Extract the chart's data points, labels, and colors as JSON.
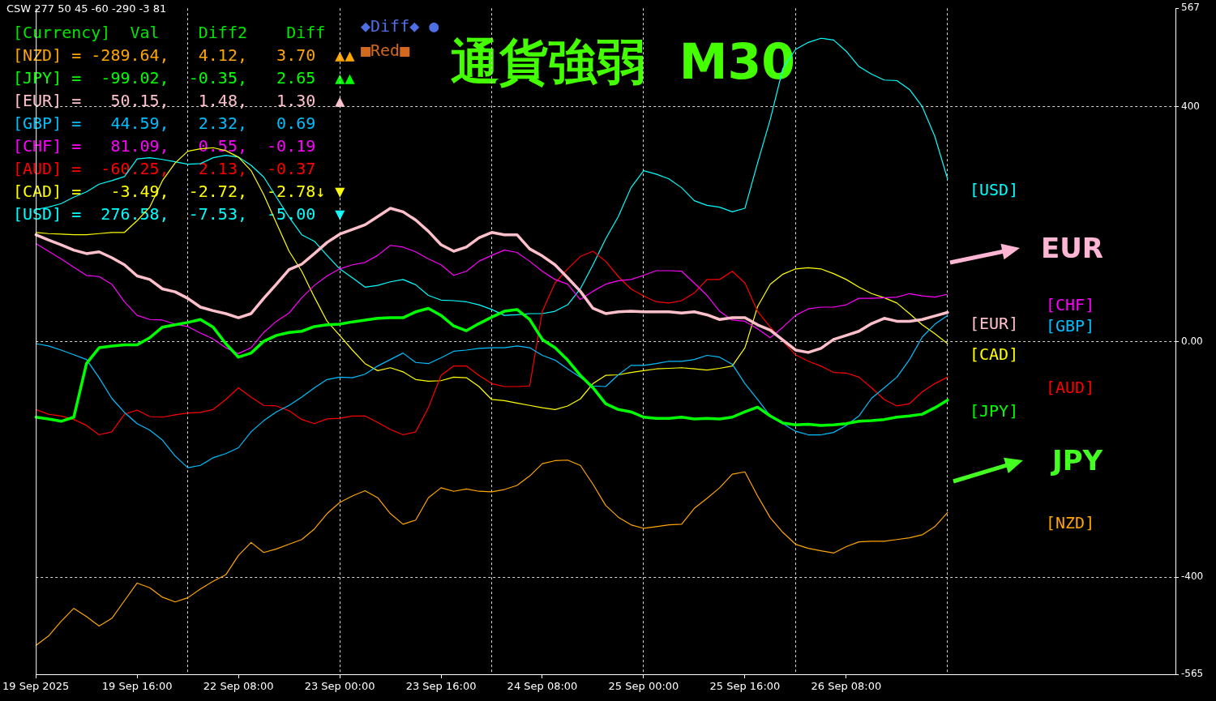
{
  "chart_data": {
    "type": "line",
    "title": "CSW 277 50 45 -60 -290 -3 81",
    "subtitle": "通貨強弱  M30",
    "categories": [
      "19 Sep 2025",
      null,
      null,
      null,
      null,
      null,
      null,
      null,
      "19 Sep 16:00",
      null,
      null,
      null,
      null,
      null,
      null,
      null,
      "22 Sep 08:00",
      null,
      null,
      null,
      null,
      null,
      null,
      null,
      "23 Sep 00:00",
      null,
      null,
      null,
      null,
      null,
      null,
      null,
      "23 Sep 16:00",
      null,
      null,
      null,
      null,
      null,
      null,
      null,
      "24 Sep 08:00",
      null,
      null,
      null,
      null,
      null,
      null,
      null,
      "25 Sep 00:00",
      null,
      null,
      null,
      null,
      null,
      null,
      null,
      "25 Sep 16:00",
      null,
      null,
      null,
      null,
      null,
      null,
      null,
      "26 Sep 08:00",
      null,
      null,
      null,
      null,
      null,
      null,
      null,
      null,
      null,
      null,
      null,
      null,
      null,
      null,
      null,
      null,
      null,
      null,
      null,
      null,
      null,
      null,
      null,
      null,
      null,
      null
    ],
    "series": [
      {
        "name": "[NZD]",
        "color": "#ffa500",
        "values": [
          -516,
          -500,
          -475,
          -453,
          -467,
          -483,
          -470,
          -440,
          -410,
          -418,
          -434,
          -442,
          -435,
          -420,
          -407,
          -396,
          -363,
          -341,
          -358,
          -352,
          -344,
          -336,
          -318,
          -292,
          -273,
          -262,
          -253,
          -265,
          -292,
          -310,
          -303,
          -265,
          -248,
          -254,
          -250,
          -254,
          -255,
          -251,
          -244,
          -228,
          -207,
          -202,
          -201,
          -210,
          -242,
          -278,
          -298,
          -311,
          -317,
          -314,
          -311,
          -310,
          -283,
          -266,
          -248,
          -225,
          -221,
          -262,
          -299,
          -324,
          -344,
          -351,
          -355,
          -359,
          -348,
          -340,
          -339,
          -339,
          -336,
          -333,
          -328,
          -314,
          -290,
          null,
          null,
          null,
          null,
          null,
          null,
          null,
          null,
          null,
          null,
          null,
          null,
          null,
          null,
          null,
          null,
          null,
          null
        ]
      },
      {
        "name": "[JPY]",
        "color": "#00ff00",
        "values": [
          -128,
          -131,
          -135,
          -128,
          -37,
          -10,
          -7,
          -5,
          -5,
          7,
          25,
          29,
          33,
          38,
          25,
          -3,
          -26,
          -19,
          1,
          11,
          16,
          18,
          26,
          29,
          30,
          34,
          37,
          40,
          41,
          41,
          51,
          57,
          45,
          27,
          19,
          31,
          42,
          52,
          55,
          38,
          4,
          -10,
          -31,
          -57,
          -78,
          -105,
          -115,
          -119,
          -128,
          -130,
          -130,
          -128,
          -131,
          -130,
          -131,
          -128,
          -119,
          -111,
          -126,
          -138,
          -141,
          -140,
          -142,
          -141,
          -139,
          -135,
          -134,
          -132,
          -128,
          -126,
          -123,
          -112,
          -99,
          null,
          null,
          null,
          null,
          null,
          null,
          null,
          null,
          null,
          null,
          null,
          null,
          null,
          null,
          null,
          null,
          null,
          null
        ]
      },
      {
        "name": "[EUR]",
        "color": "#ffc0cb",
        "values": [
          182,
          173,
          165,
          156,
          150,
          153,
          143,
          131,
          112,
          106,
          90,
          85,
          74,
          59,
          53,
          48,
          41,
          48,
          74,
          98,
          123,
          132,
          150,
          169,
          183,
          191,
          199,
          213,
          227,
          221,
          207,
          188,
          165,
          154,
          161,
          177,
          186,
          182,
          182,
          158,
          146,
          131,
          109,
          86,
          57,
          48,
          51,
          52,
          51,
          51,
          51,
          49,
          51,
          46,
          38,
          41,
          41,
          29,
          20,
          3,
          -14,
          -18,
          -11,
          4,
          11,
          18,
          31,
          40,
          35,
          35,
          38,
          44,
          50,
          null,
          null,
          null,
          null,
          null,
          null,
          null,
          null,
          null,
          null,
          null,
          null,
          null,
          null,
          null,
          null,
          null,
          null
        ]
      },
      {
        "name": "[GBP]",
        "color": "#00bfff",
        "values": [
          -3,
          -7,
          -14,
          -22,
          -30,
          -61,
          -96,
          -120,
          -139,
          -150,
          -167,
          -194,
          -214,
          -210,
          -197,
          -190,
          -180,
          -153,
          -134,
          -119,
          -108,
          -94,
          -78,
          -64,
          -60,
          -61,
          -55,
          -41,
          -30,
          -19,
          -35,
          -37,
          -27,
          -16,
          -14,
          -11,
          -10,
          -10,
          -7,
          -10,
          -23,
          -31,
          -46,
          -60,
          -75,
          -76,
          -56,
          -40,
          -40,
          -37,
          -33,
          -33,
          -30,
          -23,
          -26,
          -38,
          -71,
          -98,
          -126,
          -139,
          -152,
          -158,
          -158,
          -154,
          -142,
          -126,
          -96,
          -78,
          -60,
          -30,
          8,
          30,
          45,
          null,
          null,
          null,
          null,
          null,
          null,
          null,
          null,
          null,
          null,
          null,
          null,
          null,
          null,
          null,
          null,
          null,
          null
        ]
      },
      {
        "name": "[CHF]",
        "color": "#ff00ff",
        "values": [
          167,
          154,
          141,
          127,
          113,
          111,
          98,
          68,
          45,
          38,
          37,
          30,
          26,
          15,
          5,
          -10,
          -20,
          -10,
          16,
          35,
          49,
          75,
          96,
          112,
          124,
          131,
          135,
          147,
          164,
          161,
          153,
          141,
          131,
          113,
          120,
          137,
          147,
          156,
          152,
          137,
          120,
          106,
          98,
          72,
          86,
          98,
          104,
          106,
          113,
          121,
          121,
          120,
          100,
          79,
          52,
          37,
          35,
          22,
          7,
          25,
          45,
          56,
          59,
          59,
          63,
          74,
          74,
          75,
          76,
          82,
          78,
          76,
          81,
          null,
          null,
          null,
          null,
          null,
          null,
          null,
          null,
          null,
          null,
          null,
          null,
          null,
          null,
          null,
          null,
          null,
          null
        ]
      },
      {
        "name": "[AUD]",
        "color": "#ff0000",
        "values": [
          -115,
          -123,
          -126,
          -132,
          -142,
          -158,
          -153,
          -123,
          -116,
          -127,
          -128,
          -124,
          -121,
          -120,
          -115,
          -98,
          -78,
          -94,
          -108,
          -109,
          -117,
          -132,
          -139,
          -131,
          -130,
          -126,
          -126,
          -137,
          -149,
          -158,
          -153,
          -112,
          -57,
          -41,
          -41,
          -57,
          -71,
          -76,
          -76,
          -75,
          52,
          100,
          124,
          145,
          154,
          137,
          111,
          90,
          78,
          68,
          66,
          70,
          83,
          106,
          106,
          120,
          100,
          52,
          25,
          1,
          -22,
          -33,
          -41,
          -52,
          -53,
          -60,
          -78,
          -98,
          -109,
          -105,
          -85,
          -71,
          -60,
          null,
          null,
          null,
          null,
          null,
          null,
          null,
          null,
          null,
          null,
          null,
          null,
          null,
          null,
          null,
          null,
          null,
          null
        ]
      },
      {
        "name": "[CAD]",
        "color": "#ffff00",
        "values": [
          186,
          184,
          183,
          182,
          182,
          184,
          186,
          186,
          206,
          229,
          274,
          304,
          324,
          328,
          330,
          325,
          314,
          291,
          250,
          202,
          154,
          120,
          76,
          35,
          11,
          -14,
          -37,
          -49,
          -44,
          -51,
          -64,
          -67,
          -66,
          -60,
          -61,
          -76,
          -98,
          -100,
          -104,
          -108,
          -112,
          -115,
          -109,
          -97,
          -71,
          -57,
          -56,
          -52,
          -49,
          -46,
          -45,
          -44,
          -46,
          -48,
          -45,
          -41,
          -10,
          60,
          98,
          115,
          124,
          126,
          124,
          116,
          106,
          93,
          82,
          75,
          66,
          48,
          29,
          14,
          -3,
          null,
          null,
          null,
          null,
          null,
          null,
          null,
          null,
          null,
          null,
          null,
          null,
          null,
          null,
          null,
          null,
          null,
          null
        ]
      },
      {
        "name": "[USD]",
        "color": "#00ffff",
        "values": [
          225,
          229,
          235,
          246,
          255,
          268,
          274,
          281,
          311,
          313,
          310,
          306,
          302,
          303,
          313,
          317,
          314,
          300,
          280,
          246,
          212,
          182,
          171,
          147,
          124,
          109,
          93,
          96,
          102,
          106,
          97,
          79,
          71,
          70,
          68,
          63,
          55,
          45,
          46,
          48,
          48,
          52,
          63,
          90,
          131,
          175,
          213,
          262,
          291,
          285,
          277,
          262,
          240,
          232,
          229,
          221,
          227,
          304,
          378,
          465,
          497,
          509,
          516,
          513,
          494,
          468,
          455,
          445,
          444,
          429,
          400,
          349,
          277,
          null,
          null,
          null,
          null,
          null,
          null,
          null,
          null,
          null,
          null,
          null,
          null,
          null,
          null,
          null,
          null,
          null,
          null
        ]
      }
    ],
    "ylim": [
      -565,
      567
    ],
    "yticks": [
      -565,
      -400,
      {
        "value": 0,
        "label": "0.00"
      },
      400,
      567
    ],
    "grid": true,
    "legend": false,
    "annotations": [
      "[Currency]  Val    Diff2    Diff",
      "[NZD] = -289.64,   4.12,   3.70  ▲▲",
      "[JPY] =  -99.02,  -0.35,   2.65  ▲▲",
      "[EUR] =   50.15,   1.48,   1.30  ▲",
      "[GBP] =   44.59,   2.32,   0.69",
      "[CHF] =   81.09,   0.55,  -0.19",
      "[AUD] =  -60.25,   2.13,  -0.37",
      "[CAD] =   -3.49,  -2.72,  -2.78↓ ▼",
      "[USD] =  276.58,  -7.53,  -5.00  ▼",
      "◆Diff◆ ●",
      "■Red■",
      "EUR",
      "JPY"
    ]
  }
}
